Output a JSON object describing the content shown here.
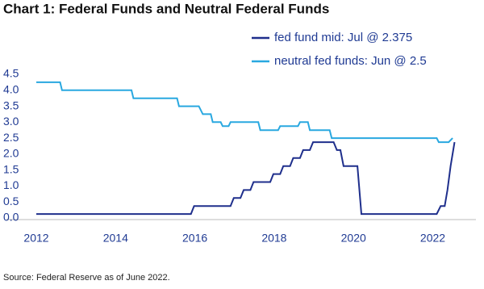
{
  "chart_data": {
    "type": "line",
    "title": "Chart 1: Federal Funds and Neutral Federal Funds",
    "source": "Source: Federal Reserve as of June 2022.",
    "series": [
      {
        "name": "fed fund mid: Jul @ 2.375",
        "color": "#1f2f8c",
        "x": [
          2012.0,
          2015.9,
          2015.98,
          2016.9,
          2016.98,
          2017.15,
          2017.23,
          2017.4,
          2017.48,
          2017.9,
          2017.98,
          2018.15,
          2018.23,
          2018.4,
          2018.48,
          2018.65,
          2018.73,
          2018.9,
          2018.98,
          2019.5,
          2019.58,
          2019.67,
          2019.75,
          2020.1,
          2020.2,
          2022.1,
          2022.2,
          2022.3,
          2022.37,
          2022.45,
          2022.55
        ],
        "values": [
          0.125,
          0.125,
          0.375,
          0.375,
          0.625,
          0.625,
          0.875,
          0.875,
          1.125,
          1.125,
          1.375,
          1.375,
          1.625,
          1.625,
          1.875,
          1.875,
          2.125,
          2.125,
          2.375,
          2.375,
          2.125,
          2.125,
          1.625,
          1.625,
          0.125,
          0.125,
          0.375,
          0.375,
          0.875,
          1.625,
          2.375
        ]
      },
      {
        "name": "neutral fed funds: Jun @ 2.5",
        "color": "#29a8e0",
        "x": [
          2012.0,
          2012.6,
          2012.65,
          2014.4,
          2014.45,
          2015.55,
          2015.6,
          2016.1,
          2016.2,
          2016.4,
          2016.45,
          2016.65,
          2016.7,
          2016.85,
          2016.9,
          2017.6,
          2017.65,
          2018.1,
          2018.15,
          2018.6,
          2018.65,
          2018.85,
          2018.9,
          2019.4,
          2019.45,
          2022.1,
          2022.15,
          2022.4,
          2022.5
        ],
        "values": [
          4.25,
          4.25,
          4.0,
          4.0,
          3.75,
          3.75,
          3.5,
          3.5,
          3.25,
          3.25,
          3.0,
          3.0,
          2.875,
          2.875,
          3.0,
          3.0,
          2.75,
          2.75,
          2.875,
          2.875,
          3.0,
          3.0,
          2.75,
          2.75,
          2.5,
          2.5,
          2.375,
          2.375,
          2.5
        ]
      }
    ],
    "xlim": [
      2012,
      2022.6
    ],
    "xticks": [
      2012,
      2014,
      2016,
      2018,
      2020,
      2022
    ],
    "ylim": [
      0,
      4.5
    ],
    "yticks": [
      {
        "value": 0,
        "label": "0.0"
      },
      {
        "value": 0.5,
        "label": "0.5"
      },
      {
        "value": 1,
        "label": "1.0"
      },
      {
        "value": 1.5,
        "label": "1.5"
      },
      {
        "value": 2,
        "label": "2.0"
      },
      {
        "value": 2.5,
        "label": "2.5"
      },
      {
        "value": 3,
        "label": "3.0"
      },
      {
        "value": 3.5,
        "label": "3.5"
      },
      {
        "value": 4,
        "label": "4.0"
      },
      {
        "value": 4.5,
        "label": "4.5"
      }
    ],
    "grid": false,
    "legend": "top-right"
  }
}
